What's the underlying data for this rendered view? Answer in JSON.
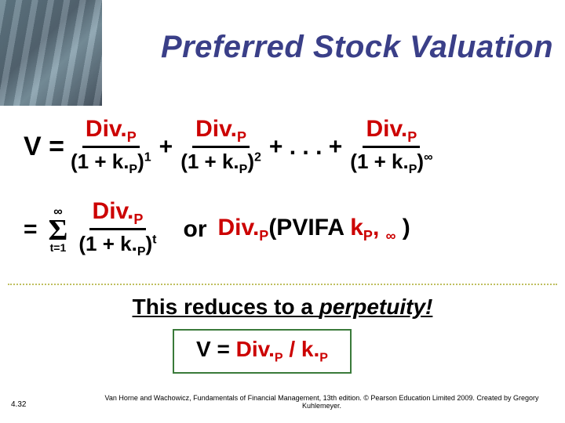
{
  "title": "Preferred Stock Valuation",
  "eq": {
    "Veq": "V =",
    "plus": "+",
    "ellipsis": "+ . . . +",
    "num_div": "Div.",
    "num_p": "P",
    "den_open": "(1 + k.",
    "den_p": "P",
    "den_close": ")",
    "exp1": "1",
    "exp2": "2",
    "exp_inf": "∞",
    "eq2_eq": "=",
    "sigma_top": "∞",
    "sigma": "Σ",
    "sigma_bot": "t=1",
    "exp_t": "t",
    "or": "or",
    "pvifa_pre": "Div.",
    "pvifa_p": "P",
    "pvifa_open": "(PVIFA",
    "pvifa_k": " k",
    "pvifa_kp": "P",
    "pvifa_comma": ", ",
    "pvifa_inf": "∞",
    "pvifa_close": " )"
  },
  "perpetuity_text_a": "This reduces to a ",
  "perpetuity_text_b": "perpetuity!",
  "boxed": {
    "V": "V = ",
    "div": "Div.",
    "p": "P",
    "slash": " / ",
    "k": "k.",
    "kp": "P"
  },
  "slide_number": "4.32",
  "credit": "Van Horne and Wachowicz, Fundamentals of Financial Management, 13th edition. © Pearson Education Limited 2009. Created by Gregory Kuhlemeyer."
}
